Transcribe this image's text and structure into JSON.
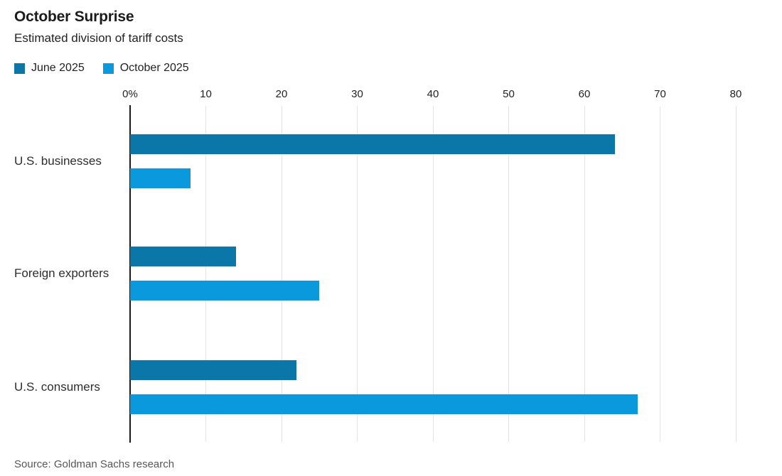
{
  "header": {
    "title": "October Surprise",
    "subtitle": "Estimated division of tariff costs"
  },
  "legend": [
    {
      "label": "June 2025",
      "color": "#0b76a8"
    },
    {
      "label": "October 2025",
      "color": "#0a99dc"
    }
  ],
  "chart_data": {
    "type": "bar",
    "orientation": "horizontal",
    "title": "October Surprise",
    "subtitle": "Estimated division of tariff costs",
    "unit": "%",
    "categories": [
      "U.S. businesses",
      "Foreign exporters",
      "U.S. consumers"
    ],
    "series": [
      {
        "name": "June 2025",
        "color": "#0b76a8",
        "values": [
          64,
          14,
          22
        ]
      },
      {
        "name": "October 2025",
        "color": "#0a99dc",
        "values": [
          8,
          25,
          67
        ]
      }
    ],
    "xlim": [
      0,
      80
    ],
    "x_ticks": [
      {
        "value": 0,
        "label": "0%"
      },
      {
        "value": 10,
        "label": "10"
      },
      {
        "value": 20,
        "label": "20"
      },
      {
        "value": 30,
        "label": "30"
      },
      {
        "value": 40,
        "label": "40"
      },
      {
        "value": 50,
        "label": "50"
      },
      {
        "value": 60,
        "label": "60"
      },
      {
        "value": 70,
        "label": "70"
      },
      {
        "value": 80,
        "label": "80"
      }
    ],
    "grid": "vertical",
    "legend_position": "top-left",
    "axis_color": "#1a1a1a",
    "gridline_color": "#e3e3e3"
  },
  "source": {
    "text": "Source: Goldman Sachs research"
  }
}
